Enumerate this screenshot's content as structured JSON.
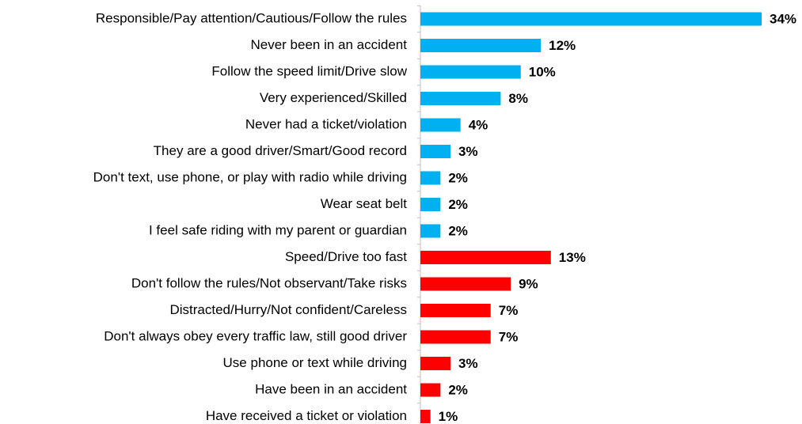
{
  "chart_data": {
    "type": "bar",
    "categories": [
      "Responsible/Pay attention/Cautious/Follow the rules",
      "Never been in an accident",
      "Follow the speed limit/Drive slow",
      "Very experienced/Skilled",
      "Never had a ticket/violation",
      "They are a good driver/Smart/Good record",
      "Don't text, use phone, or play with radio while driving",
      "Wear seat belt",
      "I feel safe riding with my parent or guardian",
      "Speed/Drive too fast",
      "Don't follow the rules/Not observant/Take risks",
      "Distracted/Hurry/Not confident/Careless",
      "Don't always obey every traffic law, still good driver",
      "Use phone or text while driving",
      "Have been in an accident",
      "Have received a ticket or violation"
    ],
    "values": [
      34,
      12,
      10,
      8,
      4,
      3,
      2,
      2,
      2,
      13,
      9,
      7,
      7,
      3,
      2,
      1
    ],
    "value_labels": [
      "34%",
      "12%",
      "10%",
      "8%",
      "4%",
      "3%",
      "2%",
      "2%",
      "2%",
      "13%",
      "9%",
      "7%",
      "7%",
      "3%",
      "2%",
      "1%"
    ],
    "colors": [
      "#00b0f0",
      "#00b0f0",
      "#00b0f0",
      "#00b0f0",
      "#00b0f0",
      "#00b0f0",
      "#00b0f0",
      "#00b0f0",
      "#00b0f0",
      "#ff0000",
      "#ff0000",
      "#ff0000",
      "#ff0000",
      "#ff0000",
      "#ff0000",
      "#ff0000"
    ]
  }
}
